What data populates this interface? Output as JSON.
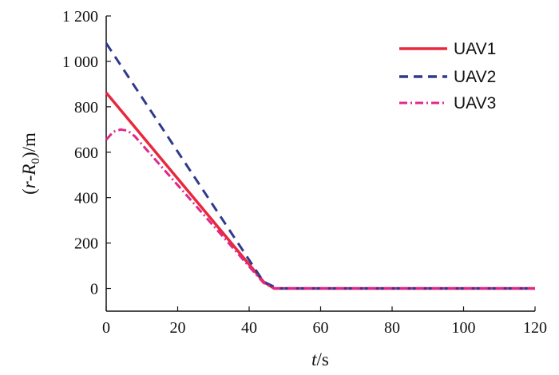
{
  "chart_data": {
    "type": "line",
    "xlabel_italic": "t",
    "xlabel_unit": "/s",
    "ylabel_open": "(",
    "ylabel_r": "r",
    "ylabel_mid": "-",
    "ylabel_R": "R",
    "ylabel_sub": "0",
    "ylabel_close": ")/m",
    "xlim": [
      0,
      120
    ],
    "ylim": [
      -100,
      1200
    ],
    "xticks": [
      0,
      20,
      40,
      60,
      80,
      100,
      120
    ],
    "xtick_labels": [
      "0",
      "20",
      "40",
      "60",
      "80",
      "100",
      "120"
    ],
    "yticks": [
      0,
      200,
      400,
      600,
      800,
      1000,
      1200
    ],
    "ytick_labels": [
      "0",
      "200",
      "400",
      "600",
      "800",
      "1 000",
      "1 200"
    ],
    "grid": false,
    "legend_position": "top-right",
    "series": [
      {
        "name": "UAV1",
        "color": "#e8283c",
        "style": "solid",
        "x": [
          0,
          44,
          47,
          120
        ],
        "y": [
          862,
          30,
          0,
          0
        ]
      },
      {
        "name": "UAV2",
        "color": "#2e3a8c",
        "style": "dashed",
        "x": [
          0,
          44,
          48,
          120
        ],
        "y": [
          1080,
          30,
          0,
          0
        ]
      },
      {
        "name": "UAV3",
        "color": "#e0288a",
        "style": "dashdot",
        "x": [
          0,
          2,
          4,
          6,
          8,
          44,
          47,
          120
        ],
        "y": [
          655,
          690,
          700,
          695,
          670,
          25,
          0,
          0
        ]
      }
    ]
  }
}
